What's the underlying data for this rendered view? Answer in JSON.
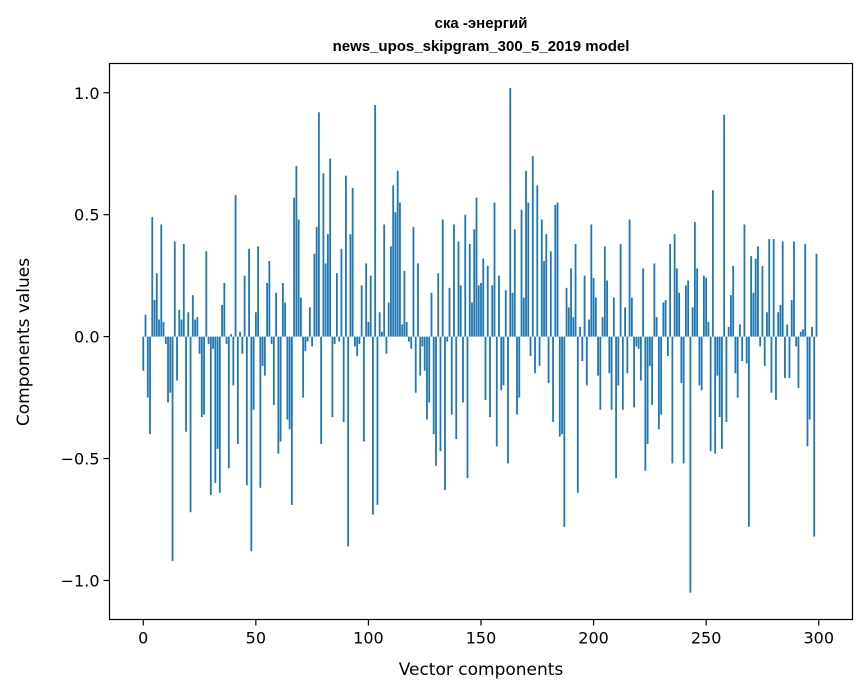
{
  "chart_data": {
    "type": "bar",
    "title_line1": "ска -энергий",
    "title_line2": "news_upos_skipgram_300_5_2019 model",
    "xlabel": "Vector components",
    "ylabel": "Components values",
    "xlim": [
      -15,
      315
    ],
    "ylim": [
      -1.16,
      1.12
    ],
    "xticks": [
      0,
      50,
      100,
      150,
      200,
      250,
      300
    ],
    "xtick_labels": [
      "0",
      "50",
      "100",
      "150",
      "200",
      "250",
      "300"
    ],
    "yticks": [
      -1.0,
      -0.5,
      0.0,
      0.5,
      1.0
    ],
    "ytick_labels": [
      "−1.0",
      "−0.5",
      "0.0",
      "0.5",
      "1.0"
    ],
    "bar_color": "#1f77b4",
    "grid": false,
    "values": [
      -0.14,
      0.09,
      -0.25,
      -0.4,
      0.49,
      0.15,
      0.26,
      0.07,
      0.46,
      0.06,
      -0.03,
      -0.27,
      -0.23,
      -0.92,
      0.39,
      -0.18,
      0.11,
      0.07,
      0.38,
      -0.39,
      0.1,
      -0.72,
      0.17,
      0.07,
      0.08,
      -0.07,
      -0.33,
      -0.32,
      0.35,
      -0.03,
      -0.65,
      -0.05,
      -0.6,
      -0.46,
      -0.64,
      0.13,
      0.22,
      -0.03,
      -0.54,
      0.01,
      -0.2,
      0.58,
      -0.44,
      0.02,
      -0.07,
      0.25,
      -0.61,
      0.36,
      -0.88,
      -0.3,
      0.1,
      0.37,
      -0.62,
      -0.12,
      -0.16,
      0.22,
      0.31,
      -0.03,
      -0.28,
      0.18,
      -0.48,
      -0.43,
      0.22,
      0.14,
      -0.34,
      -0.38,
      -0.69,
      0.57,
      0.7,
      0.48,
      0.16,
      -0.25,
      -0.06,
      -0.02,
      0.12,
      -0.04,
      0.34,
      0.45,
      0.92,
      -0.44,
      0.67,
      0.3,
      0.42,
      0.73,
      -0.33,
      -0.03,
      0.26,
      -0.02,
      0.36,
      -0.35,
      0.66,
      -0.86,
      0.42,
      0.61,
      -0.04,
      -0.08,
      -0.03,
      0.21,
      -0.43,
      0.3,
      0.06,
      0.25,
      -0.73,
      0.95,
      -0.69,
      0.1,
      0.02,
      0.46,
      -0.07,
      0.14,
      0.37,
      0.62,
      0.51,
      0.68,
      0.55,
      0.05,
      0.27,
      0.06,
      -0.02,
      -0.05,
      0.45,
      -0.23,
      0.3,
      -0.16,
      -0.04,
      -0.14,
      -0.34,
      -0.27,
      0.18,
      -0.4,
      -0.53,
      0.26,
      -0.47,
      0.48,
      -0.63,
      -0.02,
      0.2,
      -0.32,
      0.46,
      -0.42,
      0.39,
      0.21,
      -0.27,
      0.5,
      -0.58,
      0.38,
      0.14,
      0.44,
      0.57,
      0.21,
      0.22,
      0.32,
      -0.26,
      0.29,
      -0.33,
      0.21,
      0.55,
      -0.45,
      0.25,
      -0.22,
      -0.2,
      0.19,
      -0.52,
      1.02,
      0.18,
      0.44,
      -0.32,
      -0.25,
      0.52,
      0.16,
      0.68,
      0.55,
      -0.08,
      0.74,
      -0.15,
      0.62,
      -0.12,
      0.48,
      0.31,
      0.42,
      -0.19,
      0.35,
      -0.35,
      0.54,
      0.55,
      -0.41,
      -0.4,
      -0.78,
      0.2,
      0.12,
      0.28,
      0.08,
      0.38,
      -0.64,
      0.04,
      -0.1,
      0.25,
      -0.2,
      0.07,
      0.46,
      0.24,
      0.16,
      -0.16,
      -0.3,
      0.08,
      0.37,
      0.23,
      -0.15,
      -0.3,
      0.16,
      -0.58,
      -0.2,
      0.38,
      -0.3,
      0.12,
      -0.15,
      0.48,
      0.16,
      -0.29,
      -0.04,
      -0.05,
      -0.18,
      0.28,
      -0.55,
      -0.44,
      -0.12,
      -0.28,
      0.3,
      0.08,
      -0.38,
      -0.32,
      0.14,
      0.15,
      -0.08,
      0.38,
      -0.52,
      0.42,
      0.28,
      0.18,
      -0.19,
      -0.52,
      0.21,
      0.23,
      -1.05,
      0.12,
      0.47,
      0.28,
      -0.2,
      -0.22,
      0.25,
      0.24,
      0.06,
      -0.47,
      0.6,
      -0.48,
      -0.16,
      -0.33,
      -0.46,
      0.91,
      -0.35,
      0.04,
      0.17,
      0.29,
      -0.15,
      -0.25,
      0.05,
      -0.1,
      0.46,
      -0.11,
      -0.78,
      0.33,
      0.18,
      0.32,
      0.37,
      -0.04,
      0.29,
      -0.12,
      0.1,
      0.4,
      -0.23,
      0.4,
      -0.26,
      0.1,
      0.13,
      0.39,
      -0.17,
      0.05,
      -0.17,
      0.15,
      0.39,
      -0.04,
      -0.21,
      0.02,
      0.03,
      0.38,
      -0.45,
      -0.34,
      0.04,
      -0.82,
      0.34
    ]
  }
}
